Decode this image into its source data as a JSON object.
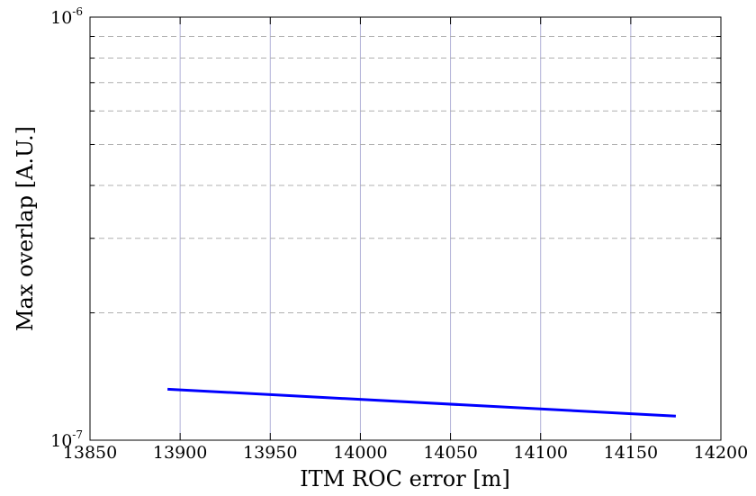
{
  "chart_data": {
    "type": "line",
    "title": "",
    "xlabel": "ITM ROC error [m]",
    "ylabel": "Max overlap [A.U.]",
    "xlim": [
      13850,
      14200
    ],
    "ylim": [
      1e-07,
      1e-06
    ],
    "yscale": "log",
    "xticks": [
      13850,
      13900,
      13950,
      14000,
      14050,
      14100,
      14150,
      14200
    ],
    "yticks": [
      {
        "value": 1e-07,
        "base": "10",
        "exp": "-7"
      },
      {
        "value": 1e-06,
        "base": "10",
        "exp": "-6"
      }
    ],
    "grid": {
      "x": "solid",
      "y_minor": "dashed"
    },
    "series": [
      {
        "color": "#0000ff",
        "x": [
          13893,
          14175
        ],
        "y": [
          1.32e-07,
          1.14e-07
        ]
      }
    ]
  }
}
